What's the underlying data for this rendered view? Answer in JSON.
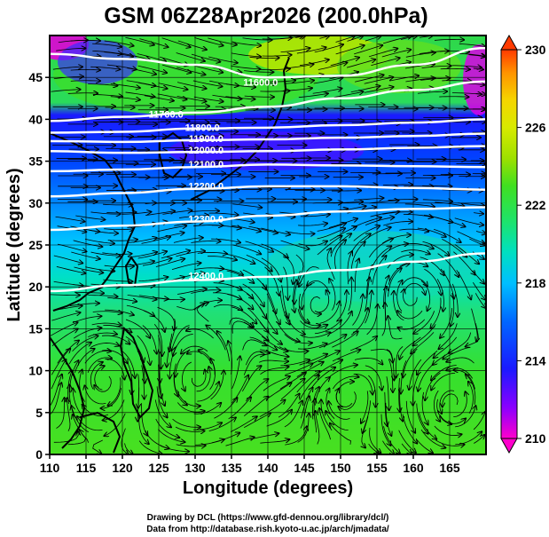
{
  "title": "GSM 06Z28Apr2026 (200.0hPa)",
  "x_axis": {
    "label": "Longitude (degrees)",
    "range": [
      110,
      170
    ],
    "ticks": [
      "110",
      "115",
      "120",
      "125",
      "130",
      "135",
      "140",
      "145",
      "150",
      "155",
      "160",
      "165"
    ]
  },
  "y_axis": {
    "label": "Latitude  (degrees)",
    "range": [
      0,
      50
    ],
    "ticks": [
      "0",
      "5",
      "10",
      "15",
      "20",
      "25",
      "30",
      "35",
      "40",
      "45"
    ]
  },
  "colorbar": {
    "range": [
      210,
      230
    ],
    "ticks": [
      "210",
      "214",
      "218",
      "222",
      "226",
      "230"
    ],
    "colors": [
      "#ff00cc",
      "#8a00ff",
      "#1a1aff",
      "#0066ff",
      "#00bfff",
      "#00e0c0",
      "#1ee36a",
      "#40e020",
      "#9de000",
      "#d8ea00",
      "#f5d500",
      "#ff9400",
      "#ff3a00"
    ]
  },
  "credits": {
    "line1": "Drawing by DCL (https://www.gfd-dennou.org/library/dcl/)",
    "line2": "Data from http://database.rish.kyoto-u.ac.jp/arch/jmadata/"
  },
  "contour_labels": [
    {
      "text": "11600.0",
      "lon": 139,
      "lat": 44
    },
    {
      "text": "11700.0",
      "lon": 126,
      "lat": 40.2
    },
    {
      "text": "11800.0",
      "lon": 131,
      "lat": 38.6
    },
    {
      "text": "11900.0",
      "lon": 131.5,
      "lat": 37.3
    },
    {
      "text": "12000.0",
      "lon": 131.5,
      "lat": 35.9
    },
    {
      "text": "12100.0",
      "lon": 131.5,
      "lat": 34.2
    },
    {
      "text": "12200.0",
      "lon": 131.5,
      "lat": 31.6
    },
    {
      "text": "12300.0",
      "lon": 131.5,
      "lat": 27.7
    },
    {
      "text": "12400.0",
      "lon": 131.5,
      "lat": 20.9
    }
  ],
  "contour_levels": [
    {
      "value": "11600.0",
      "points": [
        [
          110,
          47.8
        ],
        [
          120,
          47.2
        ],
        [
          130,
          46.5
        ],
        [
          140,
          45
        ],
        [
          150,
          45.2
        ],
        [
          160,
          46.5
        ],
        [
          170,
          48.5
        ]
      ]
    },
    {
      "value": "11700.0",
      "points": [
        [
          110,
          39.8
        ],
        [
          120,
          40.3
        ],
        [
          130,
          40.8
        ],
        [
          140,
          41.5
        ],
        [
          150,
          42.5
        ],
        [
          160,
          43.5
        ],
        [
          170,
          44.5
        ]
      ]
    },
    {
      "value": "11800.0",
      "points": [
        [
          110,
          38.4
        ],
        [
          120,
          38.5
        ],
        [
          130,
          38.9
        ],
        [
          140,
          39
        ],
        [
          150,
          39.3
        ],
        [
          160,
          39.6
        ],
        [
          170,
          40
        ]
      ]
    },
    {
      "value": "11900.0",
      "points": [
        [
          110,
          37.4
        ],
        [
          120,
          37.3
        ],
        [
          130,
          37.5
        ],
        [
          140,
          37.6
        ],
        [
          150,
          37.8
        ],
        [
          160,
          38
        ],
        [
          170,
          38.3
        ]
      ]
    },
    {
      "value": "12000.0",
      "points": [
        [
          110,
          36.2
        ],
        [
          120,
          36
        ],
        [
          130,
          36.1
        ],
        [
          140,
          36.2
        ],
        [
          150,
          36.4
        ],
        [
          160,
          36.6
        ],
        [
          170,
          36.8
        ]
      ]
    },
    {
      "value": "12100.0",
      "points": [
        [
          110,
          33.8
        ],
        [
          120,
          34
        ],
        [
          130,
          34.3
        ],
        [
          140,
          34.6
        ],
        [
          150,
          34.5
        ],
        [
          160,
          34.4
        ],
        [
          170,
          34.3
        ]
      ]
    },
    {
      "value": "12200.0",
      "points": [
        [
          110,
          30.8
        ],
        [
          120,
          31.2
        ],
        [
          130,
          31.7
        ],
        [
          140,
          32
        ],
        [
          150,
          32
        ],
        [
          160,
          31.8
        ],
        [
          170,
          31.6
        ]
      ]
    },
    {
      "value": "12300.0",
      "points": [
        [
          110,
          26.8
        ],
        [
          120,
          27.3
        ],
        [
          130,
          27.8
        ],
        [
          140,
          28.5
        ],
        [
          150,
          29
        ],
        [
          160,
          29.3
        ],
        [
          170,
          29.5
        ]
      ]
    },
    {
      "value": "12400.0",
      "points": [
        [
          110,
          19.5
        ],
        [
          120,
          20.2
        ],
        [
          130,
          20.8
        ],
        [
          140,
          21.2
        ],
        [
          150,
          22
        ],
        [
          160,
          23
        ],
        [
          170,
          24
        ]
      ]
    }
  ]
}
